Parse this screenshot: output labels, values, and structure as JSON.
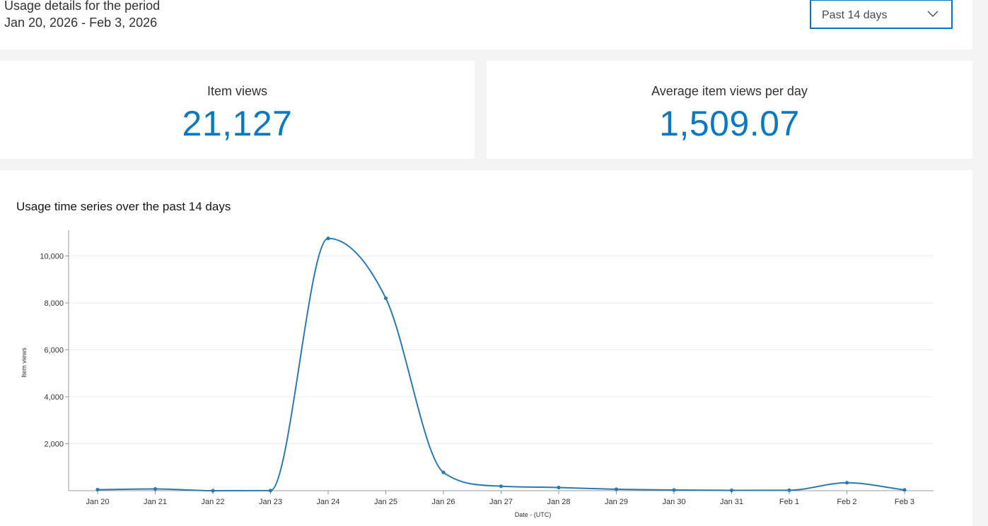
{
  "header": {
    "title": "Usage details for the period",
    "range": "Jan 20, 2026 - Feb 3, 2026",
    "period_select": {
      "value": "Past 14 days"
    }
  },
  "stats": {
    "item_views": {
      "label": "Item views",
      "value": "21,127"
    },
    "avg_views": {
      "label": "Average item views per day",
      "value": "1,509.07"
    }
  },
  "icons": {
    "select_chevron": "chevron-down-icon"
  },
  "colors": {
    "accent": "#0079c1",
    "line": "#2a7ab0"
  },
  "chart_data": {
    "type": "line",
    "title": "Usage time series over the past 14 days",
    "xlabel": "Date - (UTC)",
    "ylabel": "Item views",
    "categories": [
      "Jan 20",
      "Jan 21",
      "Jan 22",
      "Jan 23",
      "Jan 24",
      "Jan 25",
      "Jan 26",
      "Jan 27",
      "Jan 28",
      "Jan 29",
      "Jan 30",
      "Jan 31",
      "Feb 1",
      "Feb 2",
      "Feb 3"
    ],
    "series": [
      {
        "values": [
          45,
          75,
          0,
          5,
          10750,
          8200,
          780,
          190,
          135,
          60,
          30,
          15,
          20,
          340,
          35
        ]
      }
    ],
    "yticks": [
      2000,
      4000,
      6000,
      8000,
      10000
    ],
    "ytick_labels": [
      "2,000",
      "4,000",
      "6,000",
      "8,000",
      "10,000"
    ],
    "ylim": [
      0,
      10800
    ],
    "grid": true,
    "legend": "none"
  }
}
